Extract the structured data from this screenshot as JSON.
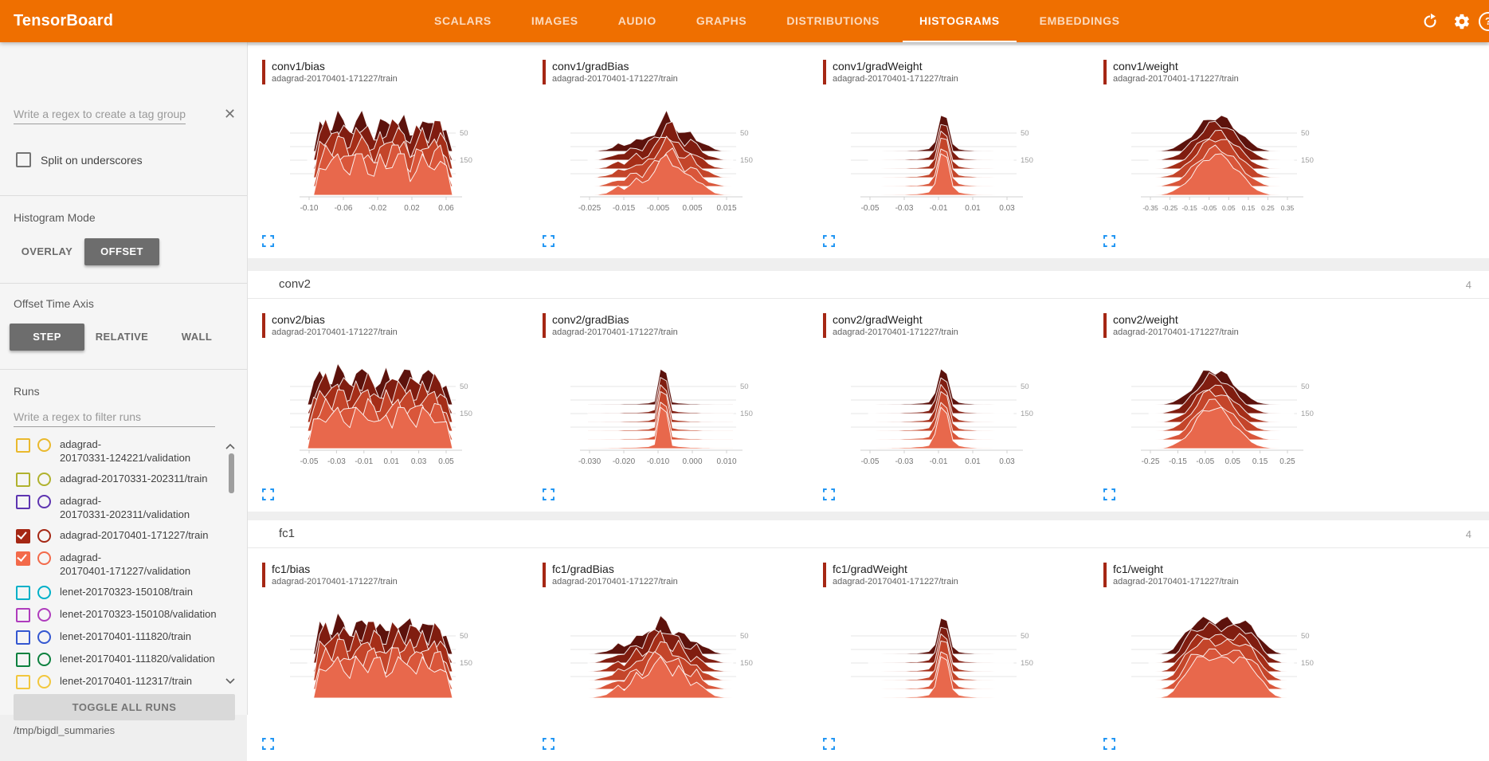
{
  "toolbar": {
    "title": "TensorBoard",
    "tabs": [
      "SCALARS",
      "IMAGES",
      "AUDIO",
      "GRAPHS",
      "DISTRIBUTIONS",
      "HISTOGRAMS",
      "EMBEDDINGS"
    ],
    "active_tab": "HISTOGRAMS",
    "icons": [
      "refresh",
      "settings",
      "help"
    ],
    "color": "#ef6f00"
  },
  "sidebar": {
    "tag_filter_placeholder": "Write a regex to create a tag group",
    "split_checkbox_label": "Split on underscores",
    "split_checked": false,
    "histogram_mode": {
      "label": "Histogram Mode",
      "options": [
        "OVERLAY",
        "OFFSET"
      ],
      "selected": "OFFSET"
    },
    "offset_time_axis": {
      "label": "Offset Time Axis",
      "options": [
        "STEP",
        "RELATIVE",
        "WALL"
      ],
      "selected": "STEP"
    },
    "runs": {
      "label": "Runs",
      "filter_placeholder": "Write a regex to filter runs",
      "items": [
        {
          "name": "adagrad-20170331-124221/validation",
          "lines": [
            "adagrad-",
            "20170331-124221/validation"
          ],
          "color": "#eab92d",
          "checked": false
        },
        {
          "name": "adagrad-20170331-202311/train",
          "lines": [
            "adagrad-20170331-202311/train"
          ],
          "color": "#b0b22e",
          "checked": false
        },
        {
          "name": "adagrad-20170331-202311/validation",
          "lines": [
            "adagrad-",
            "20170331-202311/validation"
          ],
          "color": "#5e35b1",
          "checked": false
        },
        {
          "name": "adagrad-20170401-171227/train",
          "lines": [
            "adagrad-20170401-171227/train"
          ],
          "color": "#a52714",
          "checked": true
        },
        {
          "name": "adagrad-20170401-171227/validation",
          "lines": [
            "adagrad-",
            "20170401-171227/validation"
          ],
          "color": "#f36a4a",
          "checked": true
        },
        {
          "name": "lenet-20170323-150108/train",
          "lines": [
            "lenet-20170323-150108/train"
          ],
          "color": "#00b0c8",
          "checked": false
        },
        {
          "name": "lenet-20170323-150108/validation",
          "lines": [
            "lenet-20170323-150108/validation"
          ],
          "color": "#af3cbd",
          "checked": false
        },
        {
          "name": "lenet-20170401-111820/train",
          "lines": [
            "lenet-20170401-111820/train"
          ],
          "color": "#3457d1",
          "checked": false
        },
        {
          "name": "lenet-20170401-111820/validation",
          "lines": [
            "lenet-20170401-111820/validation"
          ],
          "color": "#0d813f",
          "checked": false
        },
        {
          "name": "lenet-20170401-112317/train",
          "lines": [
            "lenet-20170401-112317/train"
          ],
          "color": "#f2c73d",
          "checked": false
        }
      ],
      "toggle_button": "TOGGLE ALL RUNS",
      "log_dir": "/tmp/bigdl_summaries"
    }
  },
  "main": {
    "sections": [
      {
        "name": "conv1",
        "count": "4",
        "header_visible": false
      },
      {
        "name": "conv2",
        "count": "4",
        "header_visible": true
      },
      {
        "name": "fc1",
        "count": "4",
        "header_visible": true
      }
    ]
  },
  "chart_style": {
    "ridge_colors_front_to_back": [
      "#e8684c",
      "#d9563a",
      "#c4452a",
      "#a52e18",
      "#801d10",
      "#5c120c"
    ],
    "accent": "#a52714",
    "fullscreen_icon_color": "#2196f3"
  },
  "chart_data": [
    {
      "type": "histogram-ridgeline",
      "section": "conv1",
      "title": "conv1/bias",
      "run": "adagrad-20170401-171227/train",
      "x_ticks": [
        "-0.10",
        "-0.06",
        "-0.02",
        "0.02",
        "0.06"
      ],
      "y_ticks": [
        "50",
        "150"
      ],
      "jitter": 0.3,
      "profile": [
        0,
        0,
        0.7,
        0.85,
        0.74,
        0.92,
        0.8,
        0.6,
        0.88,
        0.97,
        0.72,
        0.48,
        0.8,
        0.66,
        0.94,
        1.0,
        0.82,
        0.4,
        0.74,
        0.92,
        0.6,
        0.84,
        0.9,
        0.55,
        0
      ]
    },
    {
      "type": "histogram-ridgeline",
      "section": "conv1",
      "title": "conv1/gradBias",
      "run": "adagrad-20170401-171227/train",
      "x_ticks": [
        "-0.025",
        "-0.015",
        "-0.005",
        "0.005",
        "0.015"
      ],
      "y_ticks": [
        "50",
        "150"
      ],
      "jitter": 0.18,
      "profile": [
        0,
        0,
        0.03,
        0.06,
        0.12,
        0.2,
        0.16,
        0.28,
        0.36,
        0.28,
        0.44,
        0.58,
        0.74,
        1.0,
        0.86,
        0.62,
        0.46,
        0.52,
        0.38,
        0.24,
        0.14,
        0.07,
        0.03,
        0.01,
        0
      ]
    },
    {
      "type": "histogram-ridgeline",
      "section": "conv1",
      "title": "conv1/gradWeight",
      "run": "adagrad-20170401-171227/train",
      "x_ticks": [
        "-0.05",
        "-0.03",
        "-0.01",
        "0.01",
        "0.03"
      ],
      "y_ticks": [
        "50",
        "150"
      ],
      "jitter": 0.04,
      "profile": [
        0,
        0,
        0,
        0.01,
        0.01,
        0.02,
        0.02,
        0.03,
        0.03,
        0.05,
        0.08,
        0.28,
        1.0,
        0.92,
        0.22,
        0.07,
        0.04,
        0.03,
        0.02,
        0.01,
        0.01,
        0,
        0,
        0,
        0
      ]
    },
    {
      "type": "histogram-ridgeline",
      "section": "conv1",
      "title": "conv1/weight",
      "run": "adagrad-20170401-171227/train",
      "x_ticks": [
        "-0.35",
        "-0.25",
        "-0.15",
        "-0.05",
        "0.05",
        "0.15",
        "0.25",
        "0.35"
      ],
      "y_ticks": [
        "50",
        "150"
      ],
      "jitter": 0.1,
      "profile": [
        0,
        0,
        0.02,
        0.05,
        0.1,
        0.18,
        0.3,
        0.46,
        0.63,
        0.8,
        0.93,
        1.0,
        0.97,
        0.87,
        0.72,
        0.55,
        0.38,
        0.24,
        0.13,
        0.06,
        0.02,
        0.01,
        0,
        0,
        0
      ]
    },
    {
      "type": "histogram-ridgeline",
      "section": "conv2",
      "title": "conv2/bias",
      "run": "adagrad-20170401-171227/train",
      "x_ticks": [
        "-0.05",
        "-0.03",
        "-0.01",
        "0.01",
        "0.03",
        "0.05"
      ],
      "y_ticks": [
        "50",
        "150"
      ],
      "jitter": 0.3,
      "profile": [
        0,
        0.55,
        0.78,
        0.88,
        0.72,
        0.95,
        0.82,
        0.62,
        0.9,
        0.76,
        0.97,
        0.68,
        0.52,
        0.84,
        0.7,
        0.92,
        0.78,
        0.86,
        0.66,
        0.92,
        0.74,
        0.86,
        0.7,
        0.5,
        0
      ]
    },
    {
      "type": "histogram-ridgeline",
      "section": "conv2",
      "title": "conv2/gradBias",
      "run": "adagrad-20170401-171227/train",
      "x_ticks": [
        "-0.030",
        "-0.020",
        "-0.010",
        "0.000",
        "0.010"
      ],
      "y_ticks": [
        "50",
        "150"
      ],
      "jitter": 0.03,
      "profile": [
        0.01,
        0.01,
        0.01,
        0.02,
        0.02,
        0.02,
        0.03,
        0.03,
        0.03,
        0.04,
        0.05,
        0.1,
        1.0,
        0.88,
        0.08,
        0.05,
        0.04,
        0.03,
        0.03,
        0.02,
        0.02,
        0.01,
        0.01,
        0.01,
        0.01
      ]
    },
    {
      "type": "histogram-ridgeline",
      "section": "conv2",
      "title": "conv2/gradWeight",
      "run": "adagrad-20170401-171227/train",
      "x_ticks": [
        "-0.05",
        "-0.03",
        "-0.01",
        "0.01",
        "0.03"
      ],
      "y_ticks": [
        "50",
        "150"
      ],
      "jitter": 0.04,
      "profile": [
        0,
        0,
        0.01,
        0.01,
        0.02,
        0.02,
        0.03,
        0.03,
        0.04,
        0.05,
        0.08,
        0.35,
        1.0,
        0.85,
        0.2,
        0.07,
        0.04,
        0.03,
        0.02,
        0.01,
        0.01,
        0,
        0,
        0,
        0
      ]
    },
    {
      "type": "histogram-ridgeline",
      "section": "conv2",
      "title": "conv2/weight",
      "run": "adagrad-20170401-171227/train",
      "x_ticks": [
        "-0.25",
        "-0.15",
        "-0.05",
        "0.05",
        "0.15",
        "0.25"
      ],
      "y_ticks": [
        "50",
        "150"
      ],
      "jitter": 0.1,
      "profile": [
        0,
        0,
        0.01,
        0.04,
        0.09,
        0.16,
        0.28,
        0.46,
        0.68,
        0.88,
        1.0,
        0.97,
        0.92,
        0.8,
        0.62,
        0.44,
        0.29,
        0.17,
        0.09,
        0.04,
        0.02,
        0.01,
        0,
        0,
        0
      ]
    },
    {
      "type": "histogram-ridgeline",
      "section": "fc1",
      "title": "fc1/bias",
      "run": "adagrad-20170401-171227/train",
      "x_ticks": [],
      "y_ticks": [
        "50",
        "150"
      ],
      "jitter": 0.3,
      "profile": [
        0,
        0,
        0.76,
        0.9,
        0.68,
        0.97,
        0.82,
        0.58,
        0.92,
        0.72,
        0.86,
        1.0,
        0.76,
        0.52,
        0.88,
        0.96,
        0.68,
        0.9,
        0.74,
        0.94,
        0.62,
        0.86,
        0.76,
        0.48,
        0
      ]
    },
    {
      "type": "histogram-ridgeline",
      "section": "fc1",
      "title": "fc1/gradBias",
      "run": "adagrad-20170401-171227/train",
      "x_ticks": [],
      "y_ticks": [
        "50",
        "150"
      ],
      "jitter": 0.18,
      "profile": [
        0,
        0.02,
        0.05,
        0.1,
        0.17,
        0.27,
        0.21,
        0.38,
        0.54,
        0.44,
        0.68,
        0.84,
        1.0,
        0.8,
        0.64,
        0.74,
        0.5,
        0.34,
        0.44,
        0.24,
        0.14,
        0.07,
        0.03,
        0.01,
        0
      ]
    },
    {
      "type": "histogram-ridgeline",
      "section": "fc1",
      "title": "fc1/gradWeight",
      "run": "adagrad-20170401-171227/train",
      "x_ticks": [],
      "y_ticks": [
        "50",
        "150"
      ],
      "jitter": 0.04,
      "profile": [
        0,
        0,
        0,
        0.01,
        0.01,
        0.02,
        0.02,
        0.03,
        0.03,
        0.05,
        0.08,
        0.28,
        1.0,
        0.92,
        0.22,
        0.07,
        0.04,
        0.03,
        0.02,
        0.01,
        0.01,
        0,
        0,
        0,
        0
      ]
    },
    {
      "type": "histogram-ridgeline",
      "section": "fc1",
      "title": "fc1/weight",
      "run": "adagrad-20170401-171227/train",
      "x_ticks": [],
      "y_ticks": [
        "50",
        "150"
      ],
      "jitter": 0.1,
      "profile": [
        0,
        0,
        0.02,
        0.06,
        0.16,
        0.36,
        0.6,
        0.82,
        0.92,
        0.96,
        1.0,
        0.96,
        0.94,
        0.98,
        0.93,
        0.96,
        0.88,
        0.78,
        0.58,
        0.36,
        0.17,
        0.07,
        0.02,
        0,
        0
      ]
    }
  ]
}
